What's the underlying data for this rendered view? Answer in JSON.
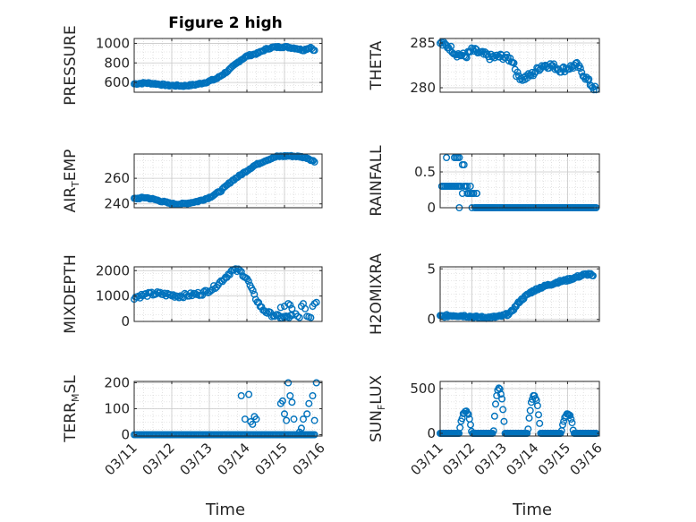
{
  "figure_title": "Figure 2 high",
  "xaxis_label": "Time",
  "marker_color": "#0072BD",
  "chart_data": [
    {
      "type": "scatter",
      "panel": "top-left",
      "title": "Figure 2 high",
      "ylabel": "PRESSURE",
      "ylabel_sub": "",
      "ylim": [
        500,
        1050
      ],
      "yticks": [
        600,
        800,
        1000
      ],
      "yticklabels": [
        "600",
        "800",
        "1000"
      ],
      "xlim": [
        0,
        5
      ],
      "xticks": [],
      "xticklabels": [],
      "keyframes": [
        [
          0,
          585
        ],
        [
          0.3,
          595
        ],
        [
          0.6,
          585
        ],
        [
          0.9,
          570
        ],
        [
          1.3,
          565
        ],
        [
          1.6,
          575
        ],
        [
          1.9,
          600
        ],
        [
          2.2,
          640
        ],
        [
          2.5,
          720
        ],
        [
          2.8,
          820
        ],
        [
          3.0,
          870
        ],
        [
          3.3,
          900
        ],
        [
          3.5,
          940
        ],
        [
          3.7,
          960
        ],
        [
          4.0,
          965
        ],
        [
          4.3,
          950
        ],
        [
          4.5,
          930
        ],
        [
          4.7,
          960
        ],
        [
          4.8,
          925
        ]
      ],
      "points": 140,
      "xmax": 4.8,
      "noise": 8
    },
    {
      "type": "scatter",
      "panel": "top-right",
      "title": "",
      "ylabel": "THETA",
      "ylabel_sub": "",
      "ylim": [
        279.5,
        285.5
      ],
      "yticks": [
        280,
        285
      ],
      "yticklabels": [
        "280",
        "285"
      ],
      "xlim": [
        0,
        5
      ],
      "xticks": [],
      "xticklabels": [],
      "keyframes": [
        [
          0,
          285
        ],
        [
          0.3,
          284.5
        ],
        [
          0.5,
          283.8
        ],
        [
          0.8,
          283.5
        ],
        [
          1.0,
          284.2
        ],
        [
          1.3,
          283.8
        ],
        [
          1.6,
          283.4
        ],
        [
          2.0,
          283.5
        ],
        [
          2.3,
          283
        ],
        [
          2.4,
          281.5
        ],
        [
          2.6,
          281
        ],
        [
          2.9,
          281.5
        ],
        [
          3.2,
          282.5
        ],
        [
          3.5,
          282.5
        ],
        [
          3.8,
          282
        ],
        [
          4.1,
          282.3
        ],
        [
          4.3,
          282.5
        ],
        [
          4.5,
          281.5
        ],
        [
          4.7,
          280.5
        ],
        [
          4.9,
          279.7
        ]
      ],
      "points": 130,
      "xmax": 4.9,
      "noise": 0.35
    },
    {
      "type": "scatter",
      "panel": "second-left",
      "title": "",
      "ylabel": "AIR",
      "ylabel_sub": "T",
      "ylabel_rest": "EMP",
      "ylim": [
        237,
        279
      ],
      "yticks": [
        240,
        260
      ],
      "yticklabels": [
        "240",
        "260"
      ],
      "xlim": [
        0,
        5
      ],
      "xticks": [],
      "xticklabels": [],
      "keyframes": [
        [
          0,
          244
        ],
        [
          0.3,
          245
        ],
        [
          0.6,
          243
        ],
        [
          1.0,
          240
        ],
        [
          1.3,
          240
        ],
        [
          1.7,
          242
        ],
        [
          2.0,
          245
        ],
        [
          2.3,
          250
        ],
        [
          2.6,
          258
        ],
        [
          2.9,
          264
        ],
        [
          3.2,
          270
        ],
        [
          3.5,
          274
        ],
        [
          3.8,
          277
        ],
        [
          4.1,
          277.5
        ],
        [
          4.4,
          277
        ],
        [
          4.6,
          276
        ],
        [
          4.8,
          273
        ]
      ],
      "points": 140,
      "xmax": 4.8,
      "noise": 0.6
    },
    {
      "type": "scatter",
      "panel": "second-right",
      "title": "",
      "ylabel": "RAINFALL",
      "ylabel_sub": "",
      "ylim": [
        0,
        0.75
      ],
      "yticks": [
        0,
        0.5
      ],
      "yticklabels": [
        "0",
        "0.5"
      ],
      "xlim": [
        0,
        5
      ],
      "xticks": [],
      "xticklabels": [],
      "x": [
        0.05,
        0.1,
        0.15,
        0.2,
        0.25,
        0.3,
        0.35,
        0.4,
        0.45,
        0.5,
        0.55,
        0.6,
        0.65,
        0.7,
        0.75,
        0.8,
        0.85,
        0.9,
        0.95,
        1.0,
        1.05,
        1.1,
        1.15,
        1.2,
        1.25,
        1.3,
        1.35,
        1.4,
        1.45,
        1.5,
        1.55,
        1.6,
        1.65,
        1.7,
        0.2,
        0.45,
        0.5,
        0.55,
        0.6,
        0.7,
        0.75,
        0.85,
        0.95,
        1.0,
        1.05,
        1.15,
        0.6
      ],
      "y": [
        0.3,
        0.3,
        0.3,
        0.3,
        0.3,
        0.3,
        0.3,
        0.3,
        0.3,
        0.3,
        0.3,
        0.3,
        0.3,
        0.2,
        0.3,
        0.3,
        0.3,
        0.2,
        0.3,
        0.2,
        0.2,
        0,
        0.2,
        0,
        0,
        0,
        0,
        0,
        0,
        0,
        0,
        0,
        0,
        0,
        0.7,
        0.7,
        0.7,
        0.7,
        0.7,
        0.6,
        0.6,
        0.2,
        0.2,
        0,
        0.2,
        0.2,
        0
      ],
      "zero_run": [
        1.1,
        4.9
      ],
      "zero_points": 90
    },
    {
      "type": "scatter",
      "panel": "third-left",
      "title": "",
      "ylabel": "MIXDEPTH",
      "ylabel_sub": "",
      "ylim": [
        0,
        2150
      ],
      "yticks": [
        0,
        1000,
        2000
      ],
      "yticklabels": [
        "0",
        "1000",
        "2000"
      ],
      "xlim": [
        0,
        5
      ],
      "xticks": [],
      "xticklabels": [],
      "keyframes": [
        [
          0,
          950
        ],
        [
          0.3,
          1050
        ],
        [
          0.6,
          1100
        ],
        [
          0.9,
          1050
        ],
        [
          1.2,
          1000
        ],
        [
          1.5,
          1050
        ],
        [
          1.8,
          1100
        ],
        [
          2.1,
          1300
        ],
        [
          2.4,
          1700
        ],
        [
          2.6,
          2000
        ],
        [
          2.8,
          2000
        ],
        [
          3.0,
          1700
        ],
        [
          3.2,
          1000
        ],
        [
          3.4,
          500
        ],
        [
          3.6,
          300
        ],
        [
          3.8,
          200
        ],
        [
          4.0,
          150
        ],
        [
          4.2,
          200
        ]
      ],
      "points": 110,
      "xmax": 4.2,
      "noise": 80,
      "extra_x": [
        3.9,
        4.0,
        4.1,
        4.15,
        4.2,
        4.3,
        4.35,
        4.4,
        4.45,
        4.5,
        4.55,
        4.6,
        4.65,
        4.7,
        4.75,
        4.8,
        4.85
      ],
      "extra_y": [
        550,
        600,
        700,
        650,
        500,
        300,
        200,
        150,
        600,
        700,
        500,
        200,
        180,
        150,
        600,
        700,
        750
      ]
    },
    {
      "type": "scatter",
      "panel": "third-right",
      "title": "",
      "ylabel": "H2OMIXRA",
      "ylabel_sub": "",
      "ylim": [
        -0.2,
        5.2
      ],
      "yticks": [
        0,
        5
      ],
      "yticklabels": [
        "0",
        "5"
      ],
      "xlim": [
        0,
        5
      ],
      "xticks": [],
      "xticklabels": [],
      "keyframes": [
        [
          0,
          0.3
        ],
        [
          0.4,
          0.4
        ],
        [
          0.8,
          0.35
        ],
        [
          1.2,
          0.2
        ],
        [
          1.6,
          0.2
        ],
        [
          1.9,
          0.3
        ],
        [
          2.2,
          0.6
        ],
        [
          2.5,
          1.8
        ],
        [
          2.8,
          2.6
        ],
        [
          3.1,
          3.1
        ],
        [
          3.4,
          3.4
        ],
        [
          3.7,
          3.7
        ],
        [
          4.0,
          3.9
        ],
        [
          4.3,
          4.2
        ],
        [
          4.5,
          4.4
        ],
        [
          4.7,
          4.5
        ],
        [
          4.8,
          4.2
        ]
      ],
      "points": 140,
      "xmax": 4.8,
      "noise": 0.12
    },
    {
      "type": "scatter",
      "panel": "bottom-left",
      "title": "",
      "ylabel": "TERR",
      "ylabel_sub": "M",
      "ylabel_rest": "SL",
      "ylim": [
        -5,
        205
      ],
      "yticks": [
        0,
        100,
        200
      ],
      "yticklabels": [
        "0",
        "100",
        "200"
      ],
      "xlim": [
        0,
        5
      ],
      "xticks": [
        0,
        1,
        2,
        3,
        4,
        5
      ],
      "xticklabels": [
        "03/11",
        "03/12",
        "03/13",
        "03/14",
        "03/15",
        "03/16"
      ],
      "zero_run": [
        0,
        4.8
      ],
      "zero_points": 120,
      "x": [
        2.85,
        2.95,
        3.05,
        3.1,
        3.15,
        3.2,
        3.25,
        3.9,
        3.95,
        4.0,
        4.05,
        4.1,
        4.15,
        4.2,
        4.25,
        4.3,
        4.4,
        4.45,
        4.5,
        4.55,
        4.6,
        4.65,
        4.7,
        4.75,
        4.8,
        4.85
      ],
      "y": [
        150,
        60,
        155,
        50,
        40,
        70,
        60,
        120,
        130,
        80,
        55,
        200,
        150,
        125,
        60,
        0,
        10,
        25,
        60,
        0,
        80,
        120,
        0,
        150,
        55,
        200
      ]
    },
    {
      "type": "scatter",
      "panel": "bottom-right",
      "title": "",
      "ylabel": "SUN",
      "ylabel_sub": "F",
      "ylabel_rest": "LUX",
      "ylim": [
        -30,
        580
      ],
      "yticks": [
        0,
        500
      ],
      "yticklabels": [
        "0",
        "500"
      ],
      "xlim": [
        0,
        5
      ],
      "xticks": [
        0,
        1,
        2,
        3,
        4,
        5
      ],
      "xticklabels": [
        "03/11",
        "03/12",
        "03/13",
        "03/14",
        "03/15",
        "03/16"
      ],
      "peaks": [
        [
          0.8,
          250,
          0.2
        ],
        [
          1.85,
          500,
          0.18
        ],
        [
          2.95,
          420,
          0.2
        ],
        [
          4.0,
          220,
          0.2
        ]
      ],
      "points": 150,
      "xmax": 4.9
    }
  ]
}
